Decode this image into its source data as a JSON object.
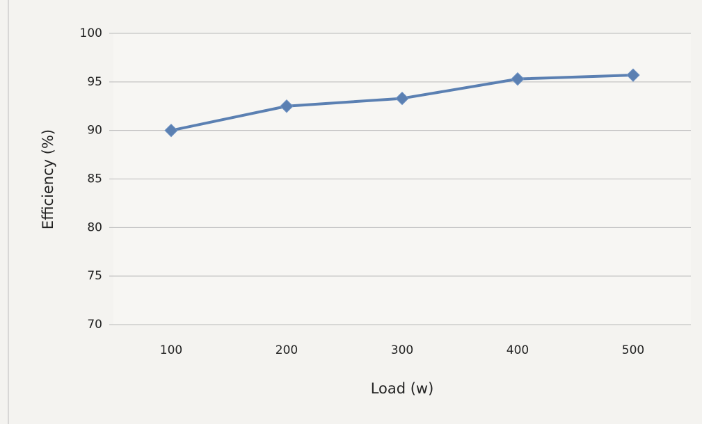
{
  "chart_data": {
    "type": "line",
    "x_label": "Load (w)",
    "y_label": "Efficiency (%)",
    "categories": [
      "100",
      "200",
      "300",
      "400",
      "500"
    ],
    "values": [
      90,
      92.5,
      93.3,
      95.3,
      95.7
    ],
    "color": "#5b80b2",
    "ylim": [
      70,
      100
    ],
    "yticks": [
      70,
      75,
      80,
      85,
      90,
      95,
      100
    ],
    "grid": true
  }
}
